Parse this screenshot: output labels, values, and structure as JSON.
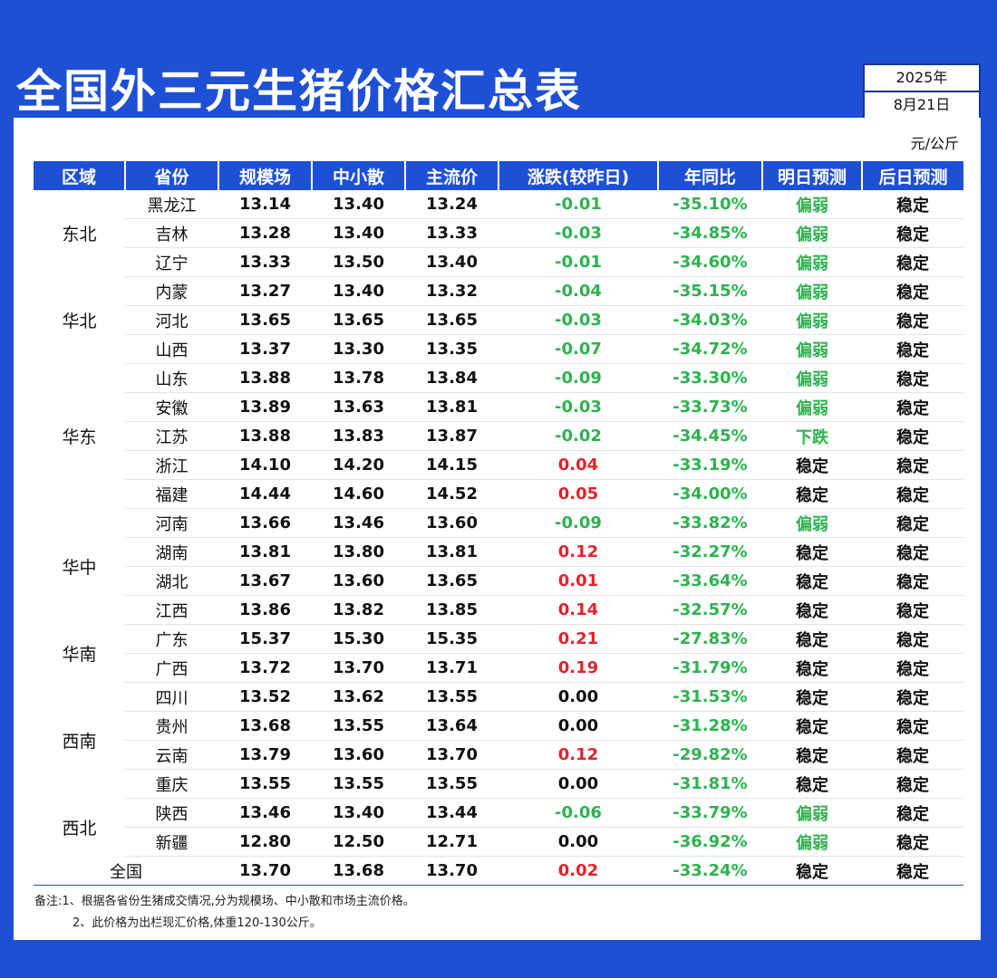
{
  "title": "全国外三元生猪价格汇总表",
  "date": {
    "year": "2025年",
    "day": "8月21日"
  },
  "unit": "元/公斤",
  "colors": {
    "background": "#1e50d6",
    "down": "#2eb24f",
    "up": "#e0242b"
  },
  "headers": [
    "区域",
    "省份",
    "规模场",
    "中小散",
    "主流价",
    "涨跌(较昨日)",
    "年同比",
    "明日预测",
    "后日预测"
  ],
  "regions": [
    {
      "name": "东北",
      "rows": [
        {
          "province": "黑龙江",
          "large": "13.14",
          "small": "13.40",
          "main": "13.24",
          "change": "-0.01",
          "yoy": "-35.10%",
          "tomorrow": "偏弱",
          "after": "稳定"
        },
        {
          "province": "吉林",
          "large": "13.28",
          "small": "13.40",
          "main": "13.33",
          "change": "-0.03",
          "yoy": "-34.85%",
          "tomorrow": "偏弱",
          "after": "稳定"
        },
        {
          "province": "辽宁",
          "large": "13.33",
          "small": "13.50",
          "main": "13.40",
          "change": "-0.01",
          "yoy": "-34.60%",
          "tomorrow": "偏弱",
          "after": "稳定"
        }
      ]
    },
    {
      "name": "华北",
      "rows": [
        {
          "province": "内蒙",
          "large": "13.27",
          "small": "13.40",
          "main": "13.32",
          "change": "-0.04",
          "yoy": "-35.15%",
          "tomorrow": "偏弱",
          "after": "稳定"
        },
        {
          "province": "河北",
          "large": "13.65",
          "small": "13.65",
          "main": "13.65",
          "change": "-0.03",
          "yoy": "-34.03%",
          "tomorrow": "偏弱",
          "after": "稳定"
        },
        {
          "province": "山西",
          "large": "13.37",
          "small": "13.30",
          "main": "13.35",
          "change": "-0.07",
          "yoy": "-34.72%",
          "tomorrow": "偏弱",
          "after": "稳定"
        }
      ]
    },
    {
      "name": "华东",
      "rows": [
        {
          "province": "山东",
          "large": "13.88",
          "small": "13.78",
          "main": "13.84",
          "change": "-0.09",
          "yoy": "-33.30%",
          "tomorrow": "偏弱",
          "after": "稳定"
        },
        {
          "province": "安徽",
          "large": "13.89",
          "small": "13.63",
          "main": "13.81",
          "change": "-0.03",
          "yoy": "-33.73%",
          "tomorrow": "偏弱",
          "after": "稳定"
        },
        {
          "province": "江苏",
          "large": "13.88",
          "small": "13.83",
          "main": "13.87",
          "change": "-0.02",
          "yoy": "-34.45%",
          "tomorrow": "下跌",
          "after": "稳定"
        },
        {
          "province": "浙江",
          "large": "14.10",
          "small": "14.20",
          "main": "14.15",
          "change": "0.04",
          "yoy": "-33.19%",
          "tomorrow": "稳定",
          "after": "稳定"
        },
        {
          "province": "福建",
          "large": "14.44",
          "small": "14.60",
          "main": "14.52",
          "change": "0.05",
          "yoy": "-34.00%",
          "tomorrow": "稳定",
          "after": "稳定"
        }
      ]
    },
    {
      "name": "华中",
      "rows": [
        {
          "province": "河南",
          "large": "13.66",
          "small": "13.46",
          "main": "13.60",
          "change": "-0.09",
          "yoy": "-33.82%",
          "tomorrow": "偏弱",
          "after": "稳定"
        },
        {
          "province": "湖南",
          "large": "13.81",
          "small": "13.80",
          "main": "13.81",
          "change": "0.12",
          "yoy": "-32.27%",
          "tomorrow": "稳定",
          "after": "稳定"
        },
        {
          "province": "湖北",
          "large": "13.67",
          "small": "13.60",
          "main": "13.65",
          "change": "0.01",
          "yoy": "-33.64%",
          "tomorrow": "稳定",
          "after": "稳定"
        },
        {
          "province": "江西",
          "large": "13.86",
          "small": "13.82",
          "main": "13.85",
          "change": "0.14",
          "yoy": "-32.57%",
          "tomorrow": "稳定",
          "after": "稳定"
        }
      ]
    },
    {
      "name": "华南",
      "rows": [
        {
          "province": "广东",
          "large": "15.37",
          "small": "15.30",
          "main": "15.35",
          "change": "0.21",
          "yoy": "-27.83%",
          "tomorrow": "稳定",
          "after": "稳定"
        },
        {
          "province": "广西",
          "large": "13.72",
          "small": "13.70",
          "main": "13.71",
          "change": "0.19",
          "yoy": "-31.79%",
          "tomorrow": "稳定",
          "after": "稳定"
        }
      ]
    },
    {
      "name": "西南",
      "rows": [
        {
          "province": "四川",
          "large": "13.52",
          "small": "13.62",
          "main": "13.55",
          "change": "0.00",
          "yoy": "-31.53%",
          "tomorrow": "稳定",
          "after": "稳定"
        },
        {
          "province": "贵州",
          "large": "13.68",
          "small": "13.55",
          "main": "13.64",
          "change": "0.00",
          "yoy": "-31.28%",
          "tomorrow": "稳定",
          "after": "稳定"
        },
        {
          "province": "云南",
          "large": "13.79",
          "small": "13.60",
          "main": "13.70",
          "change": "0.12",
          "yoy": "-29.82%",
          "tomorrow": "稳定",
          "after": "稳定"
        },
        {
          "province": "重庆",
          "large": "13.55",
          "small": "13.55",
          "main": "13.55",
          "change": "0.00",
          "yoy": "-31.81%",
          "tomorrow": "稳定",
          "after": "稳定"
        }
      ]
    },
    {
      "name": "西北",
      "rows": [
        {
          "province": "陕西",
          "large": "13.46",
          "small": "13.40",
          "main": "13.44",
          "change": "-0.06",
          "yoy": "-33.79%",
          "tomorrow": "偏弱",
          "after": "稳定"
        },
        {
          "province": "新疆",
          "large": "12.80",
          "small": "12.50",
          "main": "12.71",
          "change": "0.00",
          "yoy": "-36.92%",
          "tomorrow": "偏弱",
          "after": "稳定"
        }
      ]
    }
  ],
  "national": {
    "label": "全国",
    "large": "13.70",
    "small": "13.68",
    "main": "13.70",
    "change": "0.02",
    "yoy": "-33.24%",
    "tomorrow": "稳定",
    "after": "稳定"
  },
  "notes": [
    "备注:1、根据各省份生猪成交情况,分为规模场、中小散和市场主流价格。",
    "2、此价格为出栏现汇价格,体重120-130公斤。"
  ]
}
